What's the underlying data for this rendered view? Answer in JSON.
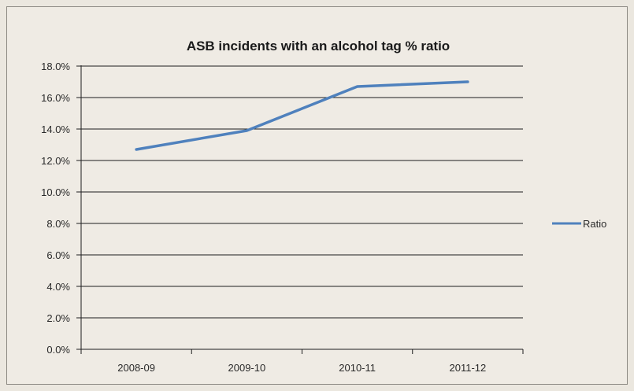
{
  "chart_data": {
    "type": "line",
    "title": "ASB incidents with an alcohol tag % ratio",
    "xlabel": "",
    "ylabel": "",
    "categories": [
      "2008-09",
      "2009-10",
      "2010-11",
      "2011-12"
    ],
    "series": [
      {
        "name": "Ratio",
        "values": [
          12.7,
          13.9,
          16.7,
          17.0
        ],
        "color": "#4f81bd"
      }
    ],
    "ylim": [
      0,
      18
    ],
    "y_ticks": [
      0,
      2,
      4,
      6,
      8,
      10,
      12,
      14,
      16,
      18
    ],
    "y_tick_labels": [
      "0.0%",
      "2.0%",
      "4.0%",
      "6.0%",
      "8.0%",
      "10.0%",
      "12.0%",
      "14.0%",
      "16.0%",
      "18.0%"
    ],
    "grid": true,
    "legend": "right"
  }
}
